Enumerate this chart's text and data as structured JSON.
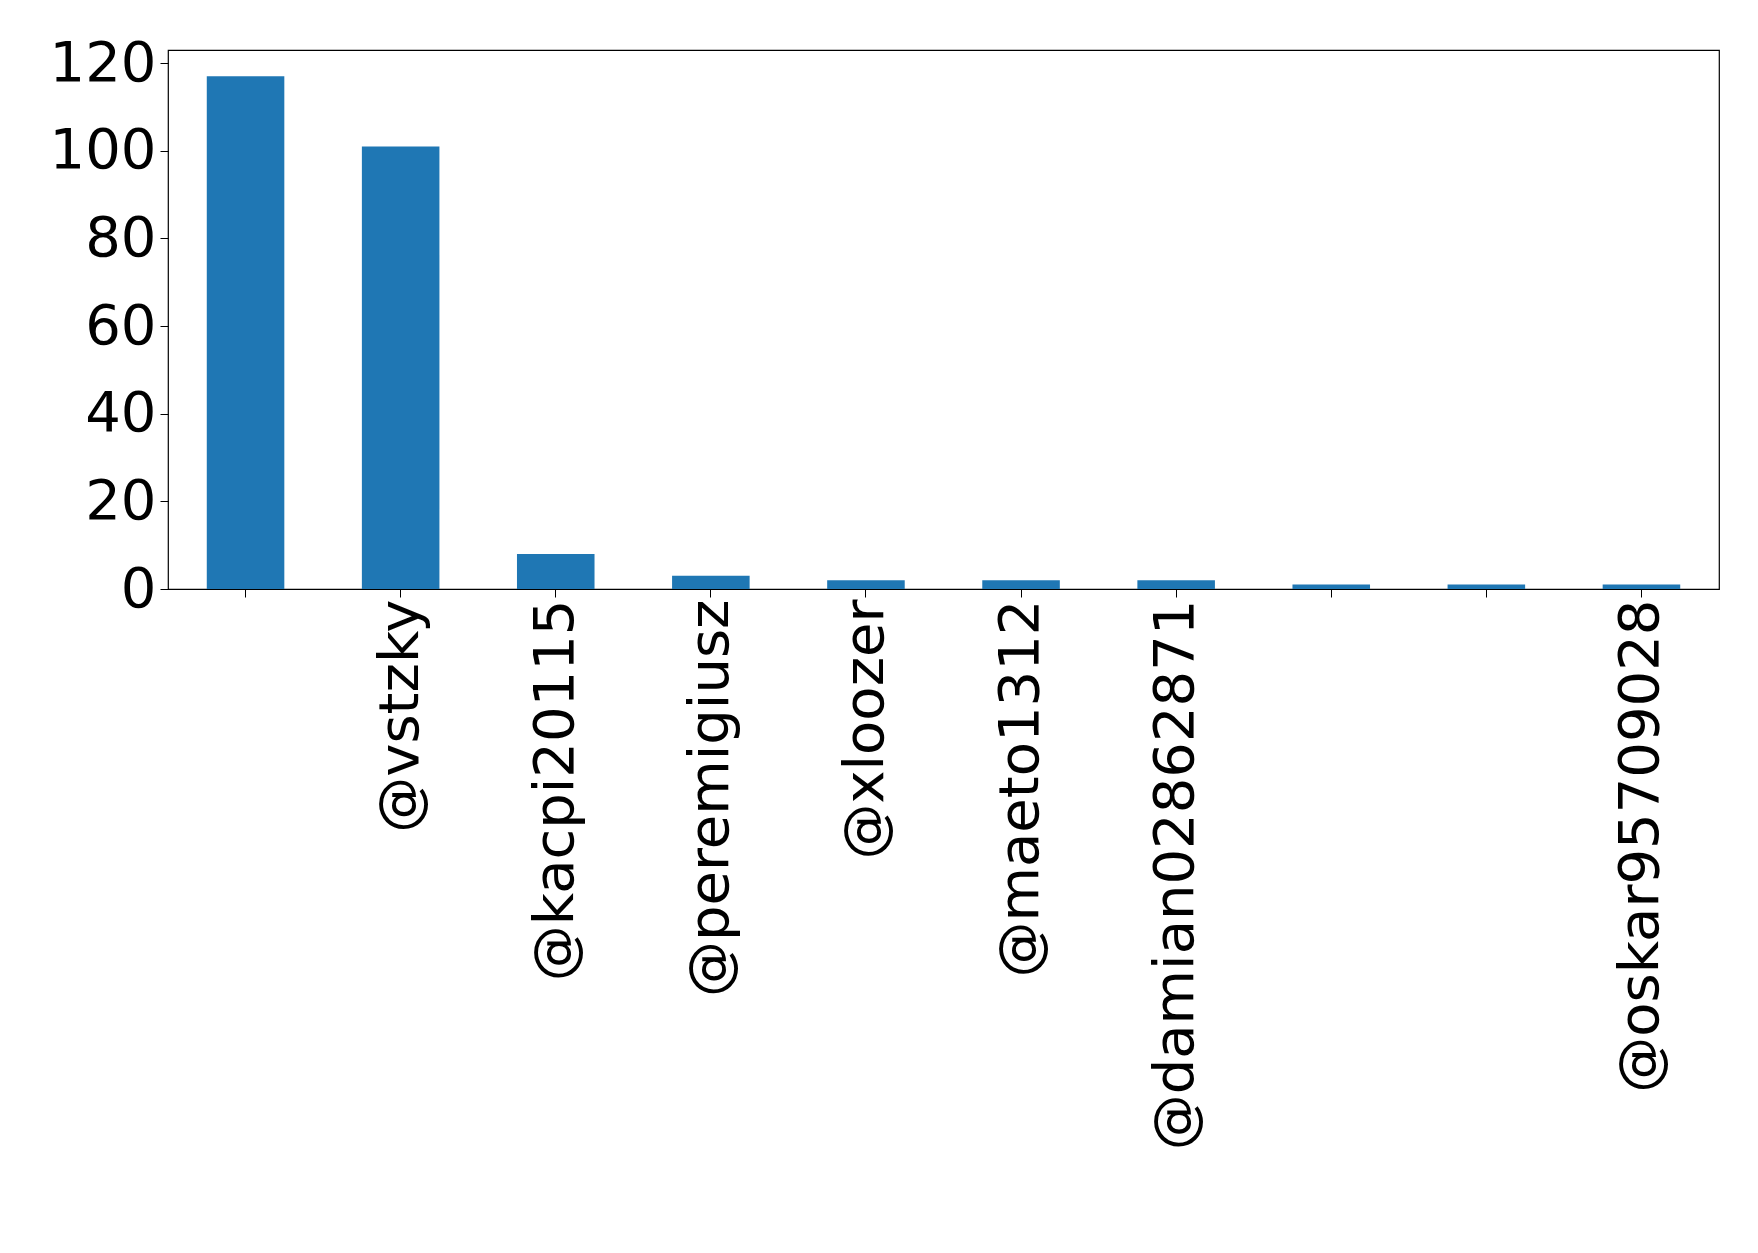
{
  "chart_data": {
    "type": "bar",
    "categories": [
      null,
      "@vstzky",
      "@kacpi20115",
      "@peremigiusz",
      "@xloozer",
      "@maeto1312",
      "@damian02862871",
      null,
      null,
      "@oskar95709028"
    ],
    "values": [
      117,
      101,
      8,
      3,
      2,
      2,
      2,
      1,
      1,
      1
    ],
    "color": "#1f77b4",
    "ylim": [
      0,
      123
    ],
    "yticks": [
      0,
      20,
      40,
      60,
      80,
      100,
      120
    ],
    "grid": false
  }
}
